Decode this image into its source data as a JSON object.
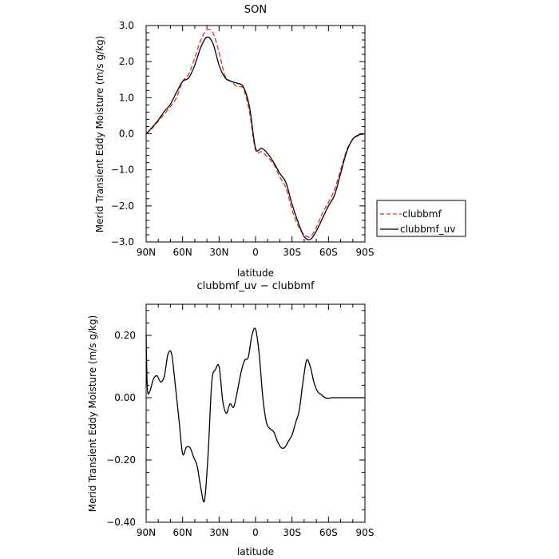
{
  "chart_data": [
    {
      "type": "line",
      "title": "SON",
      "xlabel": "latitude",
      "ylabel": "Merid Transient Eddy Moisture (m/s g/kg)",
      "xlim": [
        90,
        -90
      ],
      "ylim": [
        -3.0,
        3.0
      ],
      "x_ticks": [
        90,
        60,
        30,
        0,
        -30,
        -60,
        -90
      ],
      "x_tick_labels": [
        "90N",
        "60N",
        "30N",
        "0",
        "30S",
        "60S",
        "90S"
      ],
      "y_ticks": [
        -3.0,
        -2.0,
        -1.0,
        0.0,
        1.0,
        2.0,
        3.0
      ],
      "y_tick_labels": [
        "−3.0",
        "−2.0",
        "−1.0",
        "0.0",
        "1.0",
        "2.0",
        "3.0"
      ],
      "legend": {
        "placement": "right",
        "entries": [
          {
            "name": "clubbmf",
            "color": "#e8262a",
            "dash": "dashed"
          },
          {
            "name": "clubbmf_uv",
            "color": "#000000",
            "dash": "solid"
          }
        ]
      },
      "series": [
        {
          "name": "clubbmf",
          "color": "#e8262a",
          "dash": "dashed",
          "x": [
            90,
            85,
            80,
            75,
            70,
            65,
            60,
            55,
            50,
            45,
            40,
            35,
            30,
            25,
            20,
            15,
            10,
            5,
            0,
            -5,
            -10,
            -15,
            -20,
            -25,
            -30,
            -35,
            -40,
            -45,
            -50,
            -55,
            -60,
            -65,
            -70,
            -75,
            -80,
            -85,
            -90
          ],
          "y": [
            -0.02,
            0.15,
            0.35,
            0.55,
            0.75,
            1.0,
            1.45,
            1.65,
            2.1,
            2.6,
            2.88,
            2.8,
            2.25,
            1.6,
            1.45,
            1.3,
            1.25,
            0.6,
            -0.45,
            -0.5,
            -0.65,
            -0.85,
            -1.2,
            -1.5,
            -2.1,
            -2.55,
            -2.8,
            -2.85,
            -2.6,
            -2.2,
            -1.9,
            -1.55,
            -1.0,
            -0.45,
            -0.15,
            -0.05,
            0.0
          ]
        },
        {
          "name": "clubbmf_uv",
          "color": "#000000",
          "dash": "solid",
          "x": [
            90,
            85,
            80,
            75,
            70,
            65,
            60,
            55,
            50,
            45,
            40,
            35,
            30,
            25,
            20,
            15,
            10,
            5,
            0,
            -5,
            -10,
            -15,
            -20,
            -25,
            -30,
            -35,
            -40,
            -45,
            -50,
            -55,
            -60,
            -65,
            -70,
            -75,
            -80,
            -85,
            -90
          ],
          "y": [
            0.0,
            0.18,
            0.38,
            0.62,
            0.82,
            1.15,
            1.45,
            1.55,
            1.9,
            2.4,
            2.68,
            2.5,
            1.9,
            1.55,
            1.45,
            1.4,
            1.3,
            0.75,
            -0.4,
            -0.4,
            -0.55,
            -0.8,
            -1.1,
            -1.35,
            -1.95,
            -2.45,
            -2.85,
            -2.93,
            -2.7,
            -2.35,
            -2.0,
            -1.7,
            -1.1,
            -0.5,
            -0.15,
            -0.03,
            0.0
          ]
        }
      ]
    },
    {
      "type": "line",
      "title": "clubbmf_uv − clubbmf",
      "xlabel": "latitude",
      "ylabel": "Merid Transient Eddy Moisture (m/s g/kg)",
      "xlim": [
        90,
        -90
      ],
      "ylim": [
        -0.4,
        0.3
      ],
      "x_ticks": [
        90,
        60,
        30,
        0,
        -30,
        -60,
        -90
      ],
      "x_tick_labels": [
        "90N",
        "60N",
        "30N",
        "0",
        "30S",
        "60S",
        "90S"
      ],
      "y_ticks": [
        -0.4,
        -0.2,
        0.0,
        0.2
      ],
      "y_tick_labels": [
        "−0.40",
        "−0.20",
        "0.00",
        "0.20"
      ],
      "series": [
        {
          "name": "clubbmf_uv − clubbmf",
          "color": "#000000",
          "dash": "solid",
          "x": [
            90,
            89,
            87,
            84,
            81,
            78,
            75,
            72,
            69,
            66,
            63,
            60,
            57,
            54,
            51,
            48,
            45,
            42,
            39,
            36,
            33,
            30,
            27,
            24,
            21,
            18,
            15,
            12,
            9,
            6,
            3,
            0,
            -3,
            -6,
            -9,
            -12,
            -15,
            -18,
            -21,
            -24,
            -27,
            -30,
            -33,
            -36,
            -39,
            -42,
            -45,
            -48,
            -51,
            -54,
            -57,
            -60,
            -63,
            -66,
            -69,
            -72,
            -75,
            -78,
            -81,
            -84,
            -87,
            -90
          ],
          "y": [
            0.2,
            0.03,
            0.02,
            0.06,
            0.07,
            0.05,
            0.07,
            0.14,
            0.14,
            0.04,
            -0.07,
            -0.18,
            -0.16,
            -0.16,
            -0.19,
            -0.22,
            -0.29,
            -0.33,
            -0.18,
            0.05,
            0.09,
            0.1,
            -0.01,
            -0.05,
            -0.02,
            -0.03,
            0.02,
            0.08,
            0.12,
            0.13,
            0.2,
            0.22,
            0.14,
            0.0,
            -0.08,
            -0.1,
            -0.11,
            -0.14,
            -0.16,
            -0.16,
            -0.14,
            -0.12,
            -0.08,
            -0.04,
            0.05,
            0.12,
            0.1,
            0.05,
            0.02,
            0.01,
            0.0,
            -0.002,
            0.0,
            0.0,
            0.0,
            0.0,
            0.0,
            0.0,
            0.0,
            0.0,
            0.0,
            0.0
          ]
        }
      ]
    }
  ]
}
